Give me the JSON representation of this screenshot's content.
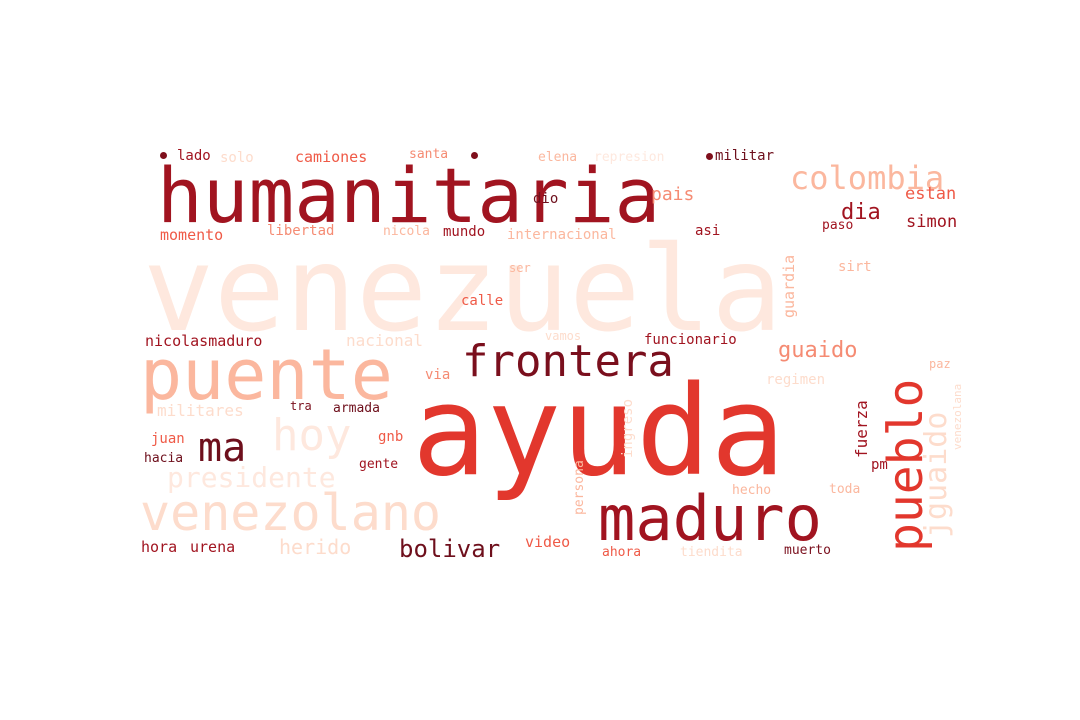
{
  "palette": {
    "darkest": "#6e0f1c",
    "dark": "#a11420",
    "red": "#e2372d",
    "coral": "#ef5a47",
    "salmon": "#f58b73",
    "light": "#fbb79e",
    "pale": "#fddccc",
    "palest": "#fee8de"
  },
  "words": [
    {
      "text": "venezuela"
    },
    {
      "text": "ayuda"
    },
    {
      "text": "humanitaria"
    },
    {
      "text": "puente"
    },
    {
      "text": "frontera"
    },
    {
      "text": "maduro"
    },
    {
      "text": "pueblo"
    },
    {
      "text": "venezolano"
    },
    {
      "text": "hoy"
    },
    {
      "text": "ma"
    },
    {
      "text": "colombia"
    },
    {
      "text": "guaido"
    },
    {
      "text": "jguaido"
    },
    {
      "text": "bolivar"
    },
    {
      "text": "presidente"
    },
    {
      "text": "dia"
    },
    {
      "text": "pais"
    },
    {
      "text": "estan"
    },
    {
      "text": "simon"
    },
    {
      "text": "lado"
    },
    {
      "text": "solo"
    },
    {
      "text": "camiones"
    },
    {
      "text": "santa"
    },
    {
      "text": "elena"
    },
    {
      "text": "represion"
    },
    {
      "text": "militar"
    },
    {
      "text": "dio"
    },
    {
      "text": "momento"
    },
    {
      "text": "libertad"
    },
    {
      "text": "nicola"
    },
    {
      "text": "mundo"
    },
    {
      "text": "internacional"
    },
    {
      "text": "asi"
    },
    {
      "text": "paso"
    },
    {
      "text": "ser"
    },
    {
      "text": "guardia"
    },
    {
      "text": "sirt"
    },
    {
      "text": "calle"
    },
    {
      "text": "nicolasmaduro"
    },
    {
      "text": "nacional"
    },
    {
      "text": "vamos"
    },
    {
      "text": "funcionario"
    },
    {
      "text": "via"
    },
    {
      "text": "regimen"
    },
    {
      "text": "paz"
    },
    {
      "text": "militares"
    },
    {
      "text": "tra"
    },
    {
      "text": "armada"
    },
    {
      "text": "ingreso"
    },
    {
      "text": "fuerza"
    },
    {
      "text": "venezolana"
    },
    {
      "text": "juan"
    },
    {
      "text": "gnb"
    },
    {
      "text": "hacia"
    },
    {
      "text": "gente"
    },
    {
      "text": "persona"
    },
    {
      "text": "pm"
    },
    {
      "text": "hecho"
    },
    {
      "text": "toda"
    },
    {
      "text": "herido"
    },
    {
      "text": "video"
    },
    {
      "text": "hora"
    },
    {
      "text": "urena"
    },
    {
      "text": "ahora"
    },
    {
      "text": "tiendita"
    },
    {
      "text": "muerto"
    }
  ]
}
